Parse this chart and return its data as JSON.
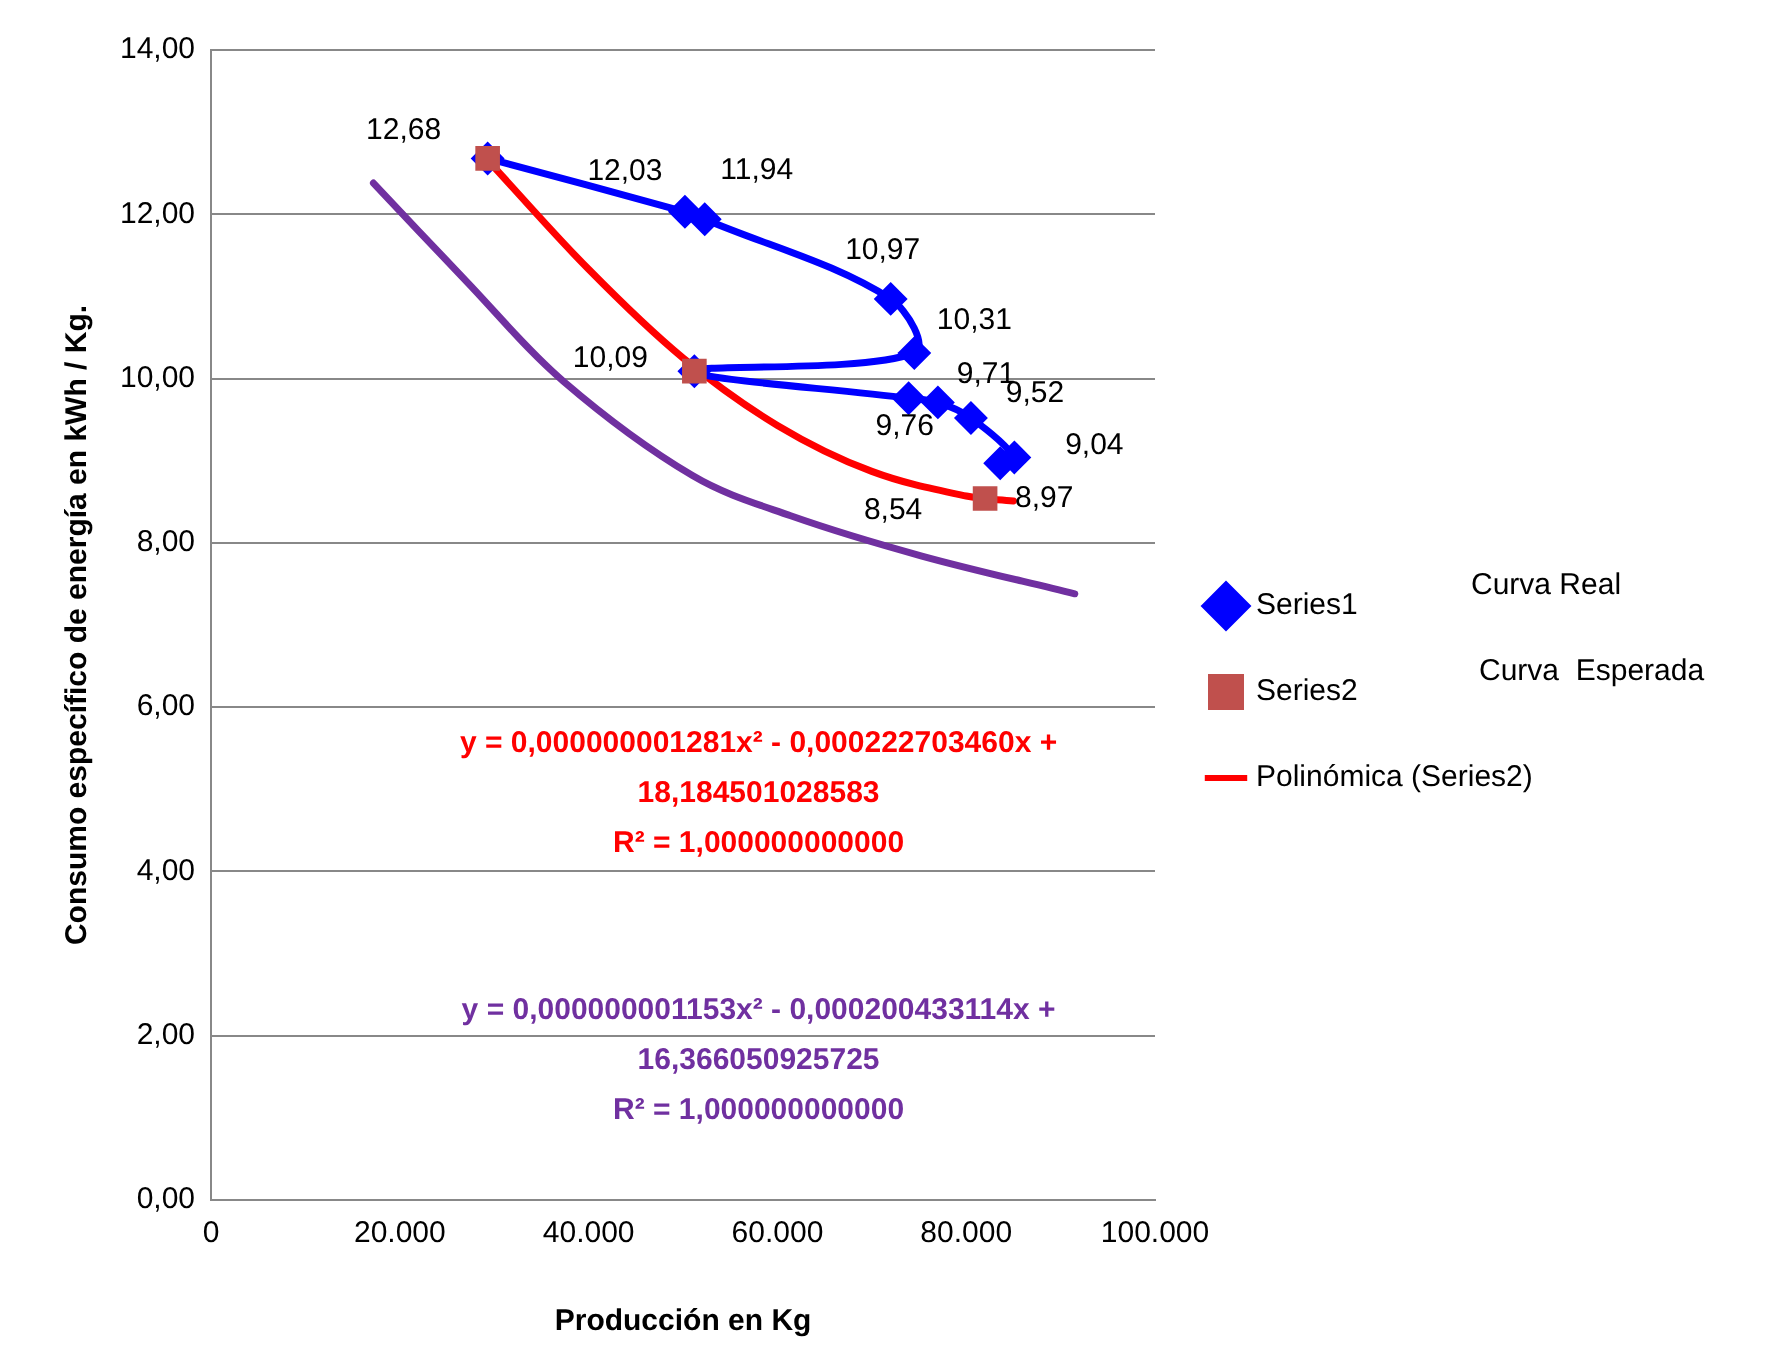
{
  "chart_data": {
    "type": "line",
    "xlabel": "Producción en Kg",
    "ylabel": "Consumo específico de energía en kWh / Kg.",
    "xlim": [
      0,
      100000
    ],
    "xticks": [
      {
        "value": 0,
        "label": "0"
      },
      {
        "value": 20000,
        "label": "20.000"
      },
      {
        "value": 40000,
        "label": "40.000"
      },
      {
        "value": 60000,
        "label": "60.000"
      },
      {
        "value": 80000,
        "label": "80.000"
      },
      {
        "value": 100000,
        "label": "100.000"
      }
    ],
    "ylim": [
      0,
      14
    ],
    "yticks": [
      {
        "value": 0,
        "label": "0,00"
      },
      {
        "value": 2,
        "label": "2,00"
      },
      {
        "value": 4,
        "label": "4,00"
      },
      {
        "value": 6,
        "label": "6,00"
      },
      {
        "value": 8,
        "label": "8,00"
      },
      {
        "value": 10,
        "label": "10,00"
      },
      {
        "value": 12,
        "label": "12,00"
      },
      {
        "value": 14,
        "label": "14,00"
      }
    ],
    "grid": "y",
    "legend": "right",
    "series": [
      {
        "name": "Series1",
        "color": "#0000ff",
        "marker": "diamond",
        "x": [
          29300,
          50200,
          52300,
          72000,
          74500,
          51200,
          73900,
          77000,
          80500,
          85100,
          83600
        ],
        "values": [
          12.68,
          12.03,
          11.94,
          10.97,
          10.31,
          10.09,
          9.76,
          9.71,
          9.52,
          9.04,
          8.97
        ],
        "value_labels": [
          "12,68",
          "12,03",
          "11,94",
          "10,97",
          "10,31",
          "10,09",
          "9,76",
          "9,71",
          "9,52",
          "9,04",
          "8,97"
        ]
      },
      {
        "name": "Series2",
        "type": "scatter",
        "color": "#c0504d",
        "marker": "square",
        "x": [
          29300,
          51200,
          82000
        ],
        "values": [
          12.68,
          10.09,
          8.54
        ],
        "value_labels": [
          null,
          null,
          "8,54"
        ]
      },
      {
        "name": "Polinómica (Series2)",
        "color": "#ff0000",
        "marker": "none",
        "x": [
          29300,
          40000,
          50000,
          60000,
          70000,
          80000,
          85000
        ],
        "values": [
          12.66,
          11.33,
          10.25,
          9.43,
          8.87,
          8.57,
          8.51
        ]
      },
      {
        "color": "#7030a0",
        "marker": "none",
        "x": [
          17200,
          27000,
          37300,
          51000,
          61400,
          75300,
          91500
        ],
        "values": [
          12.38,
          11.19,
          9.97,
          8.82,
          8.33,
          7.84,
          7.38
        ]
      }
    ],
    "annotations": [
      "Curva Real",
      "Curva  Esperada",
      "y = 0,000000001281x² - 0,000222703460x +",
      "18,184501028583",
      "R² = 1,000000000000",
      "y = 0,000000001153x² - 0,000200433114x +",
      "16,366050925725",
      "R² = 1,000000000000"
    ]
  }
}
